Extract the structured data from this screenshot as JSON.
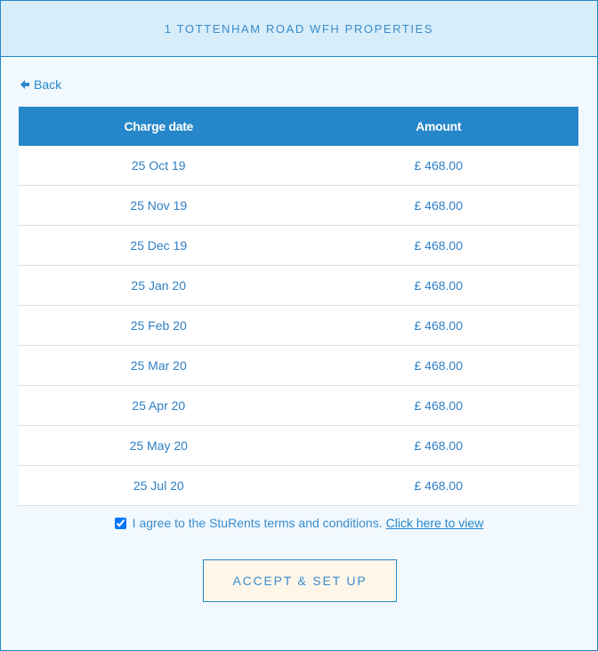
{
  "header": {
    "title": "1 TOTTENHAM ROAD WFH PROPERTIES"
  },
  "back": {
    "label": "Back",
    "icon": "arrow-left-icon"
  },
  "table": {
    "columns": [
      "Charge date",
      "Amount"
    ],
    "rows": [
      {
        "date": "25 Oct 19",
        "amount": "£ 468.00"
      },
      {
        "date": "25 Nov 19",
        "amount": "£ 468.00"
      },
      {
        "date": "25 Dec 19",
        "amount": "£ 468.00"
      },
      {
        "date": "25 Jan 20",
        "amount": "£ 468.00"
      },
      {
        "date": "25 Feb 20",
        "amount": "£ 468.00"
      },
      {
        "date": "25 Mar 20",
        "amount": "£ 468.00"
      },
      {
        "date": "25 Apr 20",
        "amount": "£ 468.00"
      },
      {
        "date": "25 May 20",
        "amount": "£ 468.00"
      },
      {
        "date": "25 Jul 20",
        "amount": "£ 468.00"
      }
    ]
  },
  "terms": {
    "checked": true,
    "text": "I agree to the StuRents terms and conditions.",
    "link": "Click here to view"
  },
  "accept_button": {
    "label": "ACCEPT & SET UP"
  },
  "colors": {
    "accent": "#2587c9",
    "header_bg": "#d7edfa",
    "button_bg": "#fff6ea"
  }
}
